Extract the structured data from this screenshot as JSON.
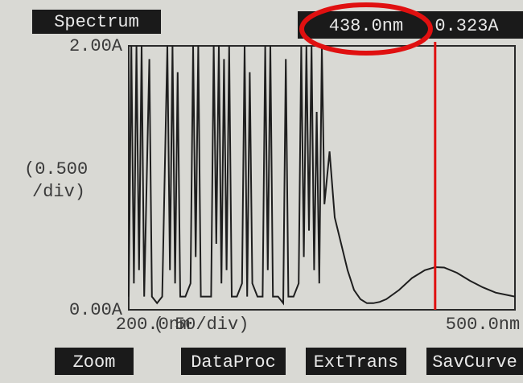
{
  "chart_data": {
    "type": "line",
    "title": "Spectrum",
    "x": [
      200,
      202,
      204,
      206,
      208,
      210,
      212,
      216,
      218,
      222,
      226,
      230,
      232,
      234,
      236,
      238,
      240,
      244,
      248,
      250,
      252,
      254,
      256,
      260,
      264,
      266,
      268,
      270,
      272,
      274,
      276,
      278,
      280,
      284,
      288,
      290,
      292,
      294,
      296,
      300,
      304,
      306,
      308,
      310,
      312,
      316,
      320,
      322,
      324,
      328,
      332,
      334,
      336,
      338,
      340,
      342,
      344,
      346,
      348,
      350,
      352,
      356,
      360,
      365,
      370,
      375,
      380,
      385,
      390,
      395,
      400,
      410,
      420,
      430,
      438,
      445,
      455,
      465,
      475,
      485,
      495,
      500
    ],
    "values": [
      0.1,
      2.0,
      0.2,
      2.0,
      0.3,
      2.0,
      0.1,
      1.9,
      0.1,
      0.05,
      0.1,
      2.0,
      0.3,
      2.0,
      0.2,
      1.8,
      0.1,
      0.1,
      0.2,
      2.0,
      0.4,
      2.0,
      0.1,
      0.1,
      0.1,
      2.0,
      0.5,
      2.0,
      0.2,
      1.9,
      0.3,
      2.0,
      0.1,
      0.1,
      0.2,
      2.0,
      0.1,
      1.8,
      0.2,
      0.1,
      0.1,
      2.0,
      0.3,
      2.0,
      0.1,
      0.1,
      0.05,
      1.9,
      0.1,
      0.1,
      0.2,
      2.0,
      0.4,
      2.0,
      0.6,
      2.0,
      0.3,
      1.5,
      0.2,
      2.0,
      0.8,
      1.2,
      0.7,
      0.5,
      0.3,
      0.15,
      0.08,
      0.05,
      0.05,
      0.06,
      0.08,
      0.15,
      0.24,
      0.3,
      0.323,
      0.32,
      0.28,
      0.22,
      0.17,
      0.13,
      0.11,
      0.1
    ],
    "color": "#1e1e1e",
    "xlim": [
      200,
      500
    ],
    "ylim": [
      0,
      2
    ],
    "xticks": [
      {
        "value": 200,
        "label": "200.0nm"
      },
      {
        "value": 500,
        "label": "500.0nm"
      }
    ],
    "yticks": [
      {
        "value": 0,
        "label": "0.00A"
      },
      {
        "value": 2,
        "label": "2.00A"
      }
    ],
    "x_label": "( 50/div)",
    "y_label": [
      "(0.500",
      "/div)"
    ],
    "cursor": {
      "x": 438,
      "x_label": "438.0nm",
      "y": 0.323,
      "y_label": "0.323A",
      "color": "#e01010"
    },
    "buttons": [
      "Zoom",
      "DataProc",
      "ExtTrans",
      "SavCurve"
    ]
  }
}
